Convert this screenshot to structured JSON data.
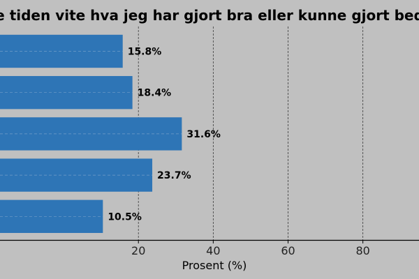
{
  "chart_data": {
    "type": "bar",
    "orientation": "horizontal",
    "title": "e tiden vite hva jeg har gjort bra eller kunne gjort bed",
    "xlabel": "Prosent (%)",
    "ylabel": "",
    "xlim": [
      -17,
      95
    ],
    "xticks": [
      20,
      40,
      60,
      80
    ],
    "categories": [
      "",
      "",
      "",
      "",
      ""
    ],
    "values": [
      15.8,
      18.4,
      31.6,
      23.7,
      10.5
    ],
    "value_labels": [
      "15.8%",
      "18.4%",
      "31.6%",
      "23.7%",
      "10.5%"
    ],
    "grid": "vertical dashed",
    "colors": {
      "background": "#c0c0c0",
      "bar": "#2e75b6",
      "axis": "#000000",
      "grid": "#3a3a3a",
      "text": "#000000"
    }
  }
}
